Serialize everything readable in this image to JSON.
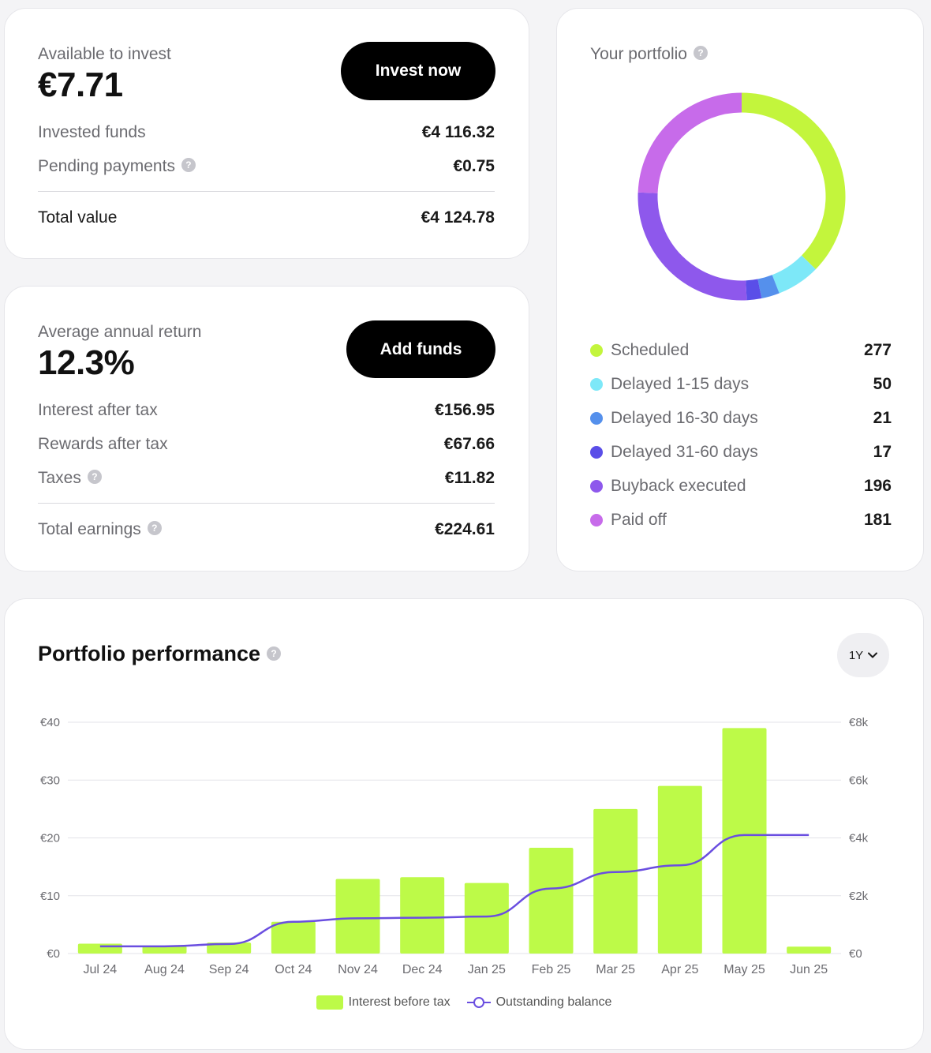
{
  "available": {
    "label": "Available to invest",
    "value": "€7.71",
    "button": "Invest now",
    "rows": [
      {
        "label": "Invested funds",
        "value": "€4 116.32",
        "help": false
      },
      {
        "label": "Pending payments",
        "value": "€0.75",
        "help": true
      }
    ],
    "total": {
      "label": "Total value",
      "value": "€4 124.78"
    }
  },
  "returns": {
    "label": "Average annual return",
    "value": "12.3%",
    "button": "Add funds",
    "rows": [
      {
        "label": "Interest after tax",
        "value": "€156.95",
        "help": false
      },
      {
        "label": "Rewards after tax",
        "value": "€67.66",
        "help": false
      },
      {
        "label": "Taxes",
        "value": "€11.82",
        "help": true
      }
    ],
    "total": {
      "label": "Total earnings",
      "value": "€224.61",
      "help": true
    }
  },
  "portfolio": {
    "title": "Your portfolio",
    "help_icon": "question-icon",
    "segments": [
      {
        "label": "Scheduled",
        "count": "277",
        "value": 277,
        "color": "#c3f53c"
      },
      {
        "label": "Delayed 1-15 days",
        "count": "50",
        "value": 50,
        "color": "#7de8f8"
      },
      {
        "label": "Delayed 16-30 days",
        "count": "21",
        "value": 21,
        "color": "#5590ec"
      },
      {
        "label": "Delayed 31-60 days",
        "count": "17",
        "value": 17,
        "color": "#5a4ee8"
      },
      {
        "label": "Buyback executed",
        "count": "196",
        "value": 196,
        "color": "#8e58ec"
      },
      {
        "label": "Paid off",
        "count": "181",
        "value": 181,
        "color": "#c76bea"
      }
    ]
  },
  "performance": {
    "title": "Portfolio performance",
    "period": "1Y"
  },
  "chart_data": {
    "type": "bar",
    "categories": [
      "Jul 24",
      "Aug 24",
      "Sep 24",
      "Oct 24",
      "Nov 24",
      "Dec 24",
      "Jan 25",
      "Feb 25",
      "Mar 25",
      "Apr 25",
      "May 25",
      "Jun 25"
    ],
    "series": [
      {
        "name": "Interest before tax",
        "type": "bar",
        "axis": "left",
        "color": "#bdfa48",
        "values": [
          1.7,
          1.3,
          1.9,
          5.5,
          12.9,
          13.2,
          12.2,
          18.3,
          25.0,
          29.0,
          39.0,
          1.2
        ]
      },
      {
        "name": "Outstanding balance",
        "type": "line",
        "axis": "right",
        "color": "#6a4ee0",
        "values": [
          250,
          250,
          330,
          1100,
          1220,
          1240,
          1280,
          2250,
          2820,
          3050,
          4100,
          4100
        ]
      }
    ],
    "y_left": {
      "ticks": [
        "€0",
        "€10",
        "€20",
        "€30",
        "€40"
      ],
      "min": 0,
      "max": 40
    },
    "y_right": {
      "ticks": [
        "€0",
        "€2k",
        "€4k",
        "€6k",
        "€8k"
      ],
      "min": 0,
      "max": 8000
    },
    "grid": true,
    "legend_position": "bottom-center"
  }
}
